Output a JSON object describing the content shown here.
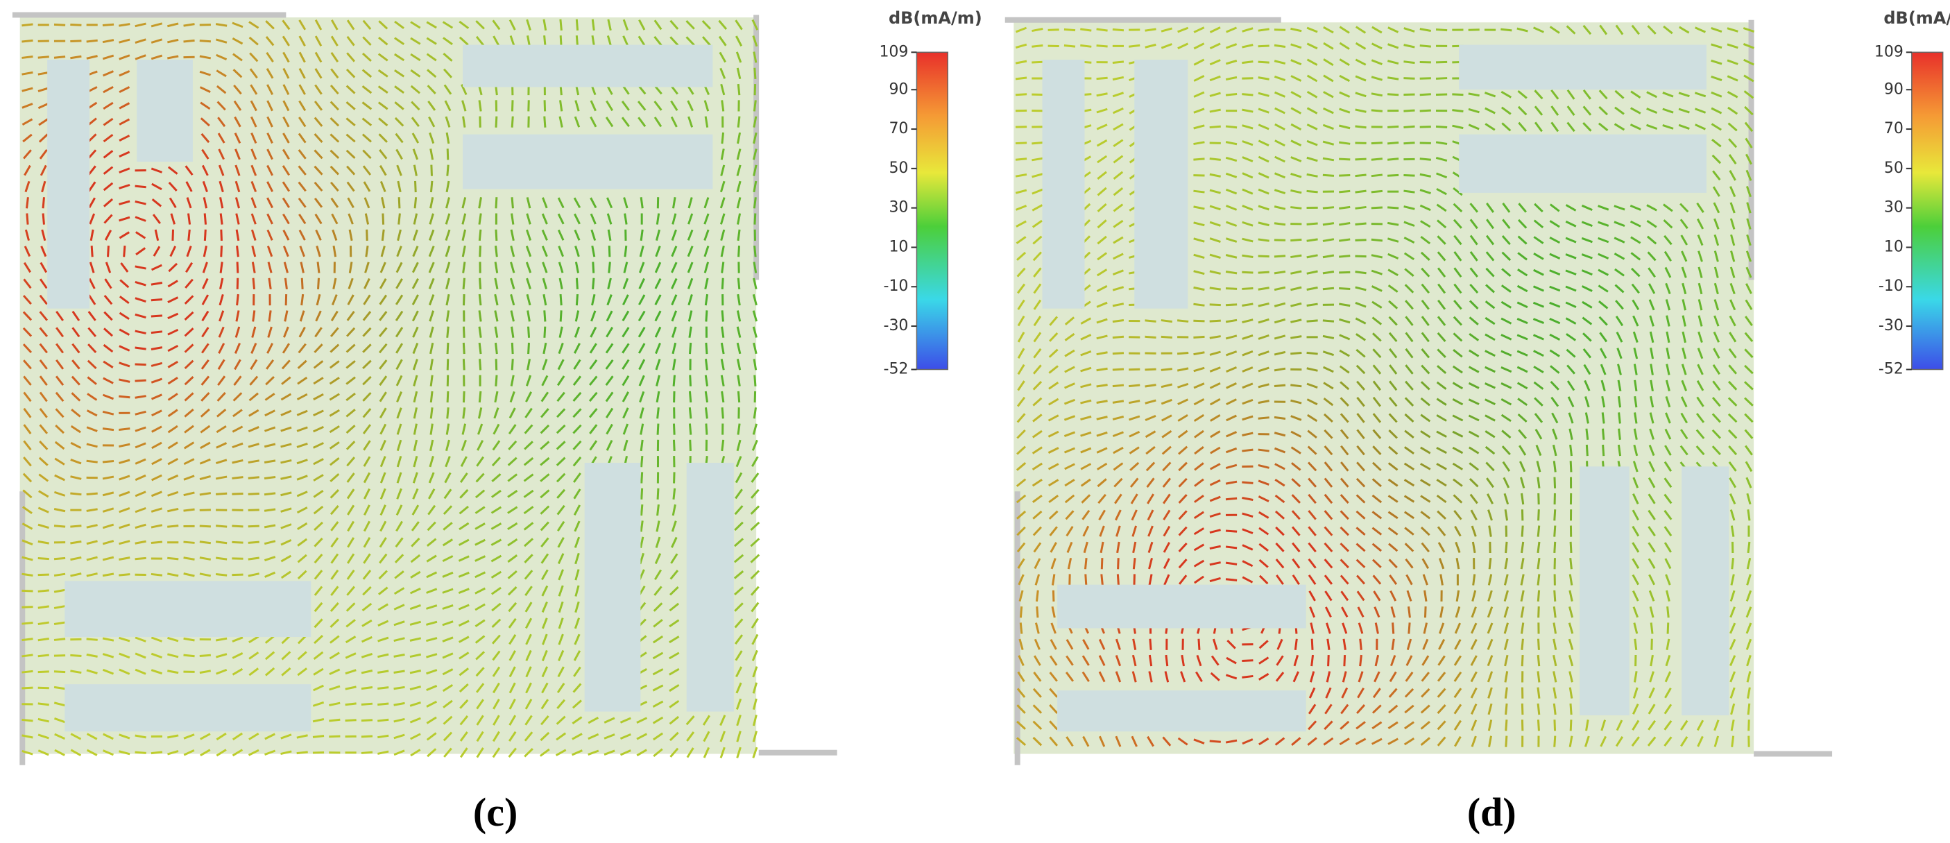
{
  "panels": [
    {
      "caption": "(c)",
      "colorbar": {
        "title": "dB(mA/m)",
        "range": [
          -52,
          109
        ],
        "ticks": [
          109,
          90,
          70,
          50,
          30,
          10,
          -10,
          -30,
          -52
        ]
      }
    },
    {
      "caption": "(d)",
      "colorbar": {
        "title": "dB(mA/m)",
        "range": [
          -52,
          109
        ],
        "ticks": [
          109,
          90,
          70,
          50,
          30,
          10,
          -10,
          -30,
          -52
        ]
      }
    }
  ]
}
